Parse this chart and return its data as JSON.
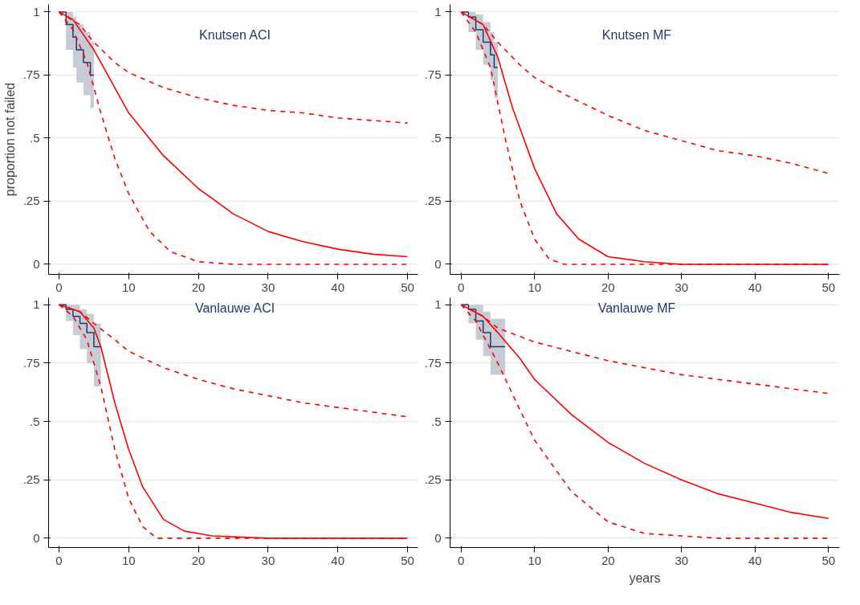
{
  "chart_data": [
    {
      "type": "line",
      "title": "Knutsen ACI",
      "ylabel": "proportion not failed",
      "xlim": [
        -1.5,
        51.5
      ],
      "ylim": [
        -0.04,
        1.03
      ],
      "xticks": [
        0,
        10,
        20,
        30,
        40,
        50
      ],
      "yticks": [
        {
          "value": 0,
          "label": "0"
        },
        {
          "value": 0.25,
          "label": ".25"
        },
        {
          "value": 0.5,
          "label": ".5"
        },
        {
          "value": 0.75,
          "label": ".75"
        },
        {
          "value": 1,
          "label": "1"
        }
      ],
      "grid": "y",
      "series": [
        {
          "type": "step",
          "color": "#1f3a6e",
          "x": [
            0,
            1,
            2,
            2.5,
            3.5,
            4.5,
            5
          ],
          "values": [
            1,
            0.95,
            0.9,
            0.85,
            0.8,
            0.75,
            0.75
          ],
          "lower": [
            1,
            0.85,
            0.78,
            0.72,
            0.67,
            0.62,
            0.62
          ],
          "upper": [
            1,
            1,
            0.98,
            0.95,
            0.92,
            0.88,
            0.88
          ]
        },
        {
          "color": "#ff0000",
          "line_style": "solid",
          "x": [
            0,
            2,
            5,
            8,
            10,
            15,
            20,
            25,
            30,
            35,
            40,
            45,
            50
          ],
          "values": [
            1,
            0.97,
            0.85,
            0.7,
            0.6,
            0.43,
            0.3,
            0.2,
            0.13,
            0.09,
            0.06,
            0.04,
            0.03
          ]
        },
        {
          "type": "line",
          "color": "#ff0000",
          "line_style": "dashed",
          "x": [
            0,
            3,
            5,
            8,
            10,
            15,
            20,
            25,
            30,
            35,
            40,
            45,
            50
          ],
          "values": [
            1,
            0.95,
            0.88,
            0.8,
            0.76,
            0.7,
            0.66,
            0.63,
            0.61,
            0.6,
            0.58,
            0.57,
            0.56
          ]
        },
        {
          "type": "line",
          "color": "#ff0000",
          "line_style": "dashed",
          "x": [
            0,
            2,
            4,
            6,
            8,
            10,
            13,
            16,
            20,
            25,
            50
          ],
          "values": [
            1,
            0.93,
            0.8,
            0.6,
            0.42,
            0.28,
            0.13,
            0.05,
            0.01,
            0,
            0
          ]
        }
      ]
    },
    {
      "type": "line",
      "title": "Knutsen MF",
      "xlim": [
        -1.5,
        51.5
      ],
      "ylim": [
        -0.04,
        1.03
      ],
      "xticks": [
        0,
        10,
        20,
        30,
        40,
        50
      ],
      "yticks": [
        {
          "value": 0,
          "label": "0"
        },
        {
          "value": 0.25,
          "label": ".25"
        },
        {
          "value": 0.5,
          "label": ".5"
        },
        {
          "value": 0.75,
          "label": ".75"
        },
        {
          "value": 1,
          "label": "1"
        }
      ],
      "grid": "y",
      "series": [
        {
          "type": "step",
          "color": "#1f3a6e",
          "x": [
            0,
            1,
            2,
            3,
            4,
            4.5,
            5
          ],
          "values": [
            1,
            0.98,
            0.93,
            0.88,
            0.83,
            0.78,
            0.78
          ],
          "lower": [
            1,
            0.92,
            0.85,
            0.79,
            0.73,
            0.66,
            0.66
          ],
          "upper": [
            1,
            1,
            0.99,
            0.96,
            0.92,
            0.88,
            0.88
          ]
        },
        {
          "color": "#ff0000",
          "line_style": "solid",
          "x": [
            0,
            3,
            5,
            7,
            10,
            13,
            16,
            20,
            25,
            30,
            50
          ],
          "values": [
            1,
            0.95,
            0.82,
            0.62,
            0.38,
            0.2,
            0.1,
            0.03,
            0.01,
            0,
            0
          ]
        },
        {
          "type": "line",
          "color": "#ff0000",
          "line_style": "dashed",
          "x": [
            0,
            3,
            5,
            8,
            10,
            15,
            20,
            25,
            30,
            35,
            40,
            45,
            50
          ],
          "values": [
            1,
            0.95,
            0.88,
            0.79,
            0.74,
            0.66,
            0.59,
            0.53,
            0.49,
            0.45,
            0.43,
            0.4,
            0.36
          ]
        },
        {
          "type": "line",
          "color": "#ff0000",
          "line_style": "dashed",
          "x": [
            0,
            2,
            4,
            6,
            8,
            10,
            12,
            14,
            50
          ],
          "values": [
            1,
            0.92,
            0.78,
            0.5,
            0.25,
            0.1,
            0.02,
            0,
            0
          ]
        }
      ]
    },
    {
      "type": "line",
      "title": "Vanlauwe ACI",
      "xlim": [
        -1.5,
        51.5
      ],
      "ylim": [
        -0.04,
        1.03
      ],
      "xticks": [
        0,
        10,
        20,
        30,
        40,
        50
      ],
      "yticks": [
        {
          "value": 0,
          "label": "0"
        },
        {
          "value": 0.25,
          "label": ".25"
        },
        {
          "value": 0.5,
          "label": ".5"
        },
        {
          "value": 0.75,
          "label": ".75"
        },
        {
          "value": 1,
          "label": "1"
        }
      ],
      "grid": "y",
      "series": [
        {
          "type": "step",
          "color": "#1f3a6e",
          "x": [
            0,
            1,
            2,
            3,
            4,
            5,
            6
          ],
          "values": [
            1,
            0.98,
            0.95,
            0.92,
            0.88,
            0.82,
            0.82
          ],
          "lower": [
            1,
            0.93,
            0.87,
            0.81,
            0.75,
            0.65,
            0.65
          ],
          "upper": [
            1,
            1,
            1,
            0.98,
            0.96,
            0.92,
            0.92
          ]
        },
        {
          "color": "#ff0000",
          "line_style": "solid",
          "x": [
            0,
            3,
            5,
            6,
            8,
            10,
            12,
            15,
            18,
            22,
            30,
            50
          ],
          "values": [
            1,
            0.97,
            0.9,
            0.82,
            0.58,
            0.38,
            0.22,
            0.08,
            0.03,
            0.01,
            0,
            0
          ]
        },
        {
          "type": "line",
          "color": "#ff0000",
          "line_style": "dashed",
          "x": [
            0,
            3,
            5,
            8,
            10,
            15,
            20,
            25,
            30,
            35,
            40,
            45,
            50
          ],
          "values": [
            1,
            0.97,
            0.92,
            0.85,
            0.8,
            0.73,
            0.68,
            0.64,
            0.61,
            0.58,
            0.56,
            0.54,
            0.52
          ]
        },
        {
          "type": "line",
          "color": "#ff0000",
          "line_style": "dashed",
          "x": [
            0,
            2,
            4,
            6,
            8,
            10,
            12,
            14,
            50
          ],
          "values": [
            1,
            0.95,
            0.85,
            0.65,
            0.38,
            0.17,
            0.05,
            0,
            0
          ]
        }
      ]
    },
    {
      "type": "line",
      "title": "Vanlauwe MF",
      "xlabel": "years",
      "xlim": [
        -1.5,
        51.5
      ],
      "ylim": [
        -0.04,
        1.03
      ],
      "xticks": [
        0,
        10,
        20,
        30,
        40,
        50
      ],
      "yticks": [
        {
          "value": 0,
          "label": "0"
        },
        {
          "value": 0.25,
          "label": ".25"
        },
        {
          "value": 0.5,
          "label": ".5"
        },
        {
          "value": 0.75,
          "label": ".75"
        },
        {
          "value": 1,
          "label": "1"
        }
      ],
      "grid": "y",
      "series": [
        {
          "type": "step",
          "color": "#1f3a6e",
          "x": [
            0,
            1,
            2,
            3,
            4,
            6
          ],
          "values": [
            1,
            0.98,
            0.93,
            0.88,
            0.82,
            0.82
          ],
          "lower": [
            1,
            0.92,
            0.85,
            0.78,
            0.7,
            0.7
          ],
          "upper": [
            1,
            1,
            1,
            0.97,
            0.94,
            0.94
          ]
        },
        {
          "color": "#ff0000",
          "line_style": "solid",
          "x": [
            0,
            3,
            5,
            8,
            10,
            15,
            20,
            25,
            30,
            35,
            40,
            45,
            50
          ],
          "values": [
            1,
            0.95,
            0.88,
            0.77,
            0.68,
            0.53,
            0.41,
            0.32,
            0.25,
            0.19,
            0.15,
            0.11,
            0.085
          ]
        },
        {
          "type": "line",
          "color": "#ff0000",
          "line_style": "dashed",
          "x": [
            0,
            3,
            5,
            10,
            15,
            20,
            25,
            30,
            35,
            40,
            45,
            50
          ],
          "values": [
            1,
            0.95,
            0.9,
            0.84,
            0.8,
            0.76,
            0.73,
            0.7,
            0.68,
            0.66,
            0.64,
            0.62
          ]
        },
        {
          "type": "line",
          "color": "#ff0000",
          "line_style": "dashed",
          "x": [
            0,
            2,
            5,
            8,
            10,
            15,
            20,
            25,
            30,
            35,
            50
          ],
          "values": [
            1,
            0.93,
            0.75,
            0.55,
            0.42,
            0.2,
            0.07,
            0.02,
            0.01,
            0,
            0
          ]
        }
      ]
    }
  ]
}
